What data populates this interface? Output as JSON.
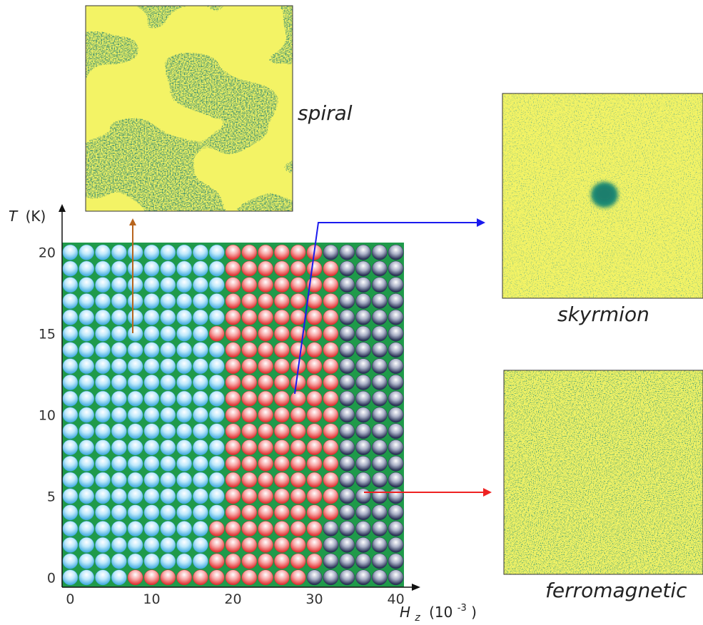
{
  "chart_data": {
    "type": "heatmap",
    "x_label": "H_z (10^-3)",
    "y_label": "T (K)",
    "x_ticks": [
      0,
      10,
      20,
      30,
      40
    ],
    "y_ticks": [
      0,
      5,
      10,
      15,
      20
    ],
    "xlim": [
      -1,
      41
    ],
    "ylim": [
      -0.6,
      20.6
    ],
    "x_values": [
      0,
      2,
      4,
      6,
      8,
      10,
      12,
      14,
      16,
      18,
      20,
      22,
      24,
      26,
      28,
      30,
      32,
      34,
      36,
      38,
      40
    ],
    "y_values": [
      0,
      1,
      2,
      3,
      4,
      5,
      6,
      7,
      8,
      9,
      10,
      11,
      12,
      13,
      14,
      15,
      16,
      17,
      18,
      19,
      20
    ],
    "phases": [
      {
        "name": "spiral",
        "color": "#8fd3f0"
      },
      {
        "name": "skyrmion",
        "color": "#ee5a5a"
      },
      {
        "name": "ferromagnetic",
        "color": "#5a6484"
      }
    ],
    "phase_rows": [
      "000011111111111222222",
      "000000000111111122222",
      "000000000111111122222",
      "000000000111111122222",
      "000000000011111112222",
      "000000000011111112222",
      "000000000011111112222",
      "000000000011111112222",
      "000000000011111112222",
      "000000000011111112222",
      "000000000011111112222",
      "000000000011111112222",
      "000000000011111112222",
      "000000000011111112222",
      "000000000011111112222",
      "000000000111111112222",
      "000000000011111112222",
      "000000000011111112222",
      "000000000011111112222",
      "000000000011111112222",
      "000000000011111122222"
    ],
    "background_color": "#1f9a4a",
    "annotations": [
      {
        "phase": "spiral",
        "label": "spiral",
        "point": [
          8,
          15
        ],
        "arrow_color": "#b8651e"
      },
      {
        "phase": "skyrmion",
        "label": "skyrmion",
        "point": [
          28,
          11
        ],
        "arrow_color": "#1a1aee"
      },
      {
        "phase": "ferromagnetic",
        "label": "ferromagnetic",
        "point": [
          36,
          5
        ],
        "arrow_color": "#ee2222"
      }
    ]
  },
  "labels": {
    "y_axis_T": "T",
    "y_axis_unit": "(K)",
    "x_axis_H": "H",
    "x_axis_sub": "z",
    "x_axis_unit_prefix": "(10",
    "x_axis_exp": "-3",
    "x_axis_unit_suffix": ")",
    "spiral": "spiral",
    "skyrmion": "skyrmion",
    "ferromagnetic": "ferromagnetic"
  },
  "colors": {
    "snapshot_yellow": "#f3f365",
    "snapshot_teal": "#1f7f72"
  }
}
